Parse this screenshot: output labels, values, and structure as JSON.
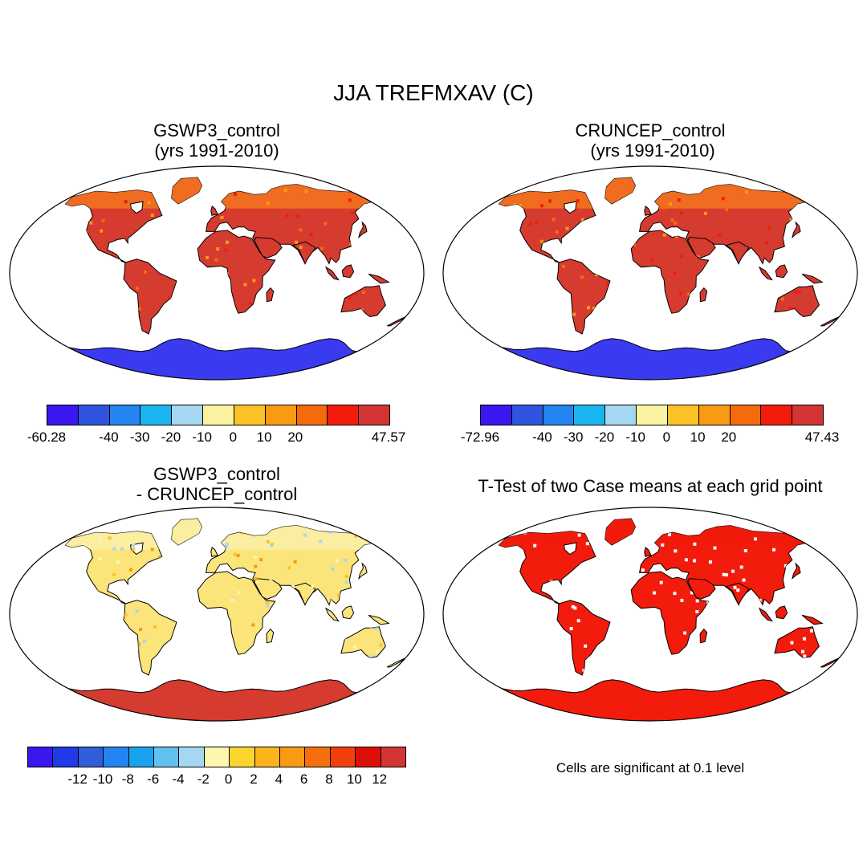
{
  "figure": {
    "title": "JJA TREFMXAV (C)"
  },
  "panels": {
    "tl": {
      "title1": "GSWP3_control",
      "title2": "(yrs 1991-2010)"
    },
    "tr": {
      "title1": "CRUNCEP_control",
      "title2": " (yrs 1991-2010)"
    },
    "bl": {
      "title1": "GSWP3_control",
      "title2": "- CRUNCEP_control"
    },
    "br": {
      "title1": "T-Test of two Case means at each grid point",
      "note": "Cells are significant at 0.1 level"
    }
  },
  "colorbars": {
    "tl": {
      "colors": [
        "#3a17f0",
        "#2f55e0",
        "#2384f2",
        "#19b5ee",
        "#a6d7f2",
        "#fbf3a0",
        "#fbc226",
        "#f89a12",
        "#f56a0c",
        "#f21b0c",
        "#d23533"
      ],
      "labels": [
        "-60.28",
        "-40",
        "-30",
        "-20",
        "-10",
        "0",
        "10",
        "20",
        "47.57"
      ]
    },
    "tr": {
      "colors": [
        "#3a17f0",
        "#2f55e0",
        "#2384f2",
        "#19b5ee",
        "#a6d7f2",
        "#fbf3a0",
        "#fbc226",
        "#f89a12",
        "#f56a0c",
        "#f21b0c",
        "#d23533"
      ],
      "labels": [
        "-72.96",
        "-40",
        "-30",
        "-20",
        "-10",
        "0",
        "10",
        "20",
        "47.43"
      ]
    },
    "bl": {
      "colors": [
        "#3a17f0",
        "#1f3ae6",
        "#2f5ed8",
        "#2384f2",
        "#19a3ee",
        "#60c1ee",
        "#a6d7f2",
        "#fdf6b0",
        "#fbd52e",
        "#fbb41c",
        "#f89a12",
        "#f5700c",
        "#f2400c",
        "#dc1008",
        "#d23533"
      ],
      "labels": [
        "-12",
        "-10",
        "-8",
        "-6",
        "-4",
        "-2",
        "0",
        "2",
        "4",
        "6",
        "8",
        "10",
        "12"
      ]
    }
  },
  "map_fills": {
    "tl": {
      "land": "#d63b30",
      "north": "#f5761e",
      "antarctica": "#3a3af0",
      "ocean": "#ffffff"
    },
    "tr": {
      "land": "#d63b30",
      "north": "#f5761e",
      "antarctica": "#3a3af0",
      "ocean": "#ffffff"
    },
    "bl": {
      "land": "#fbe57a",
      "north": "#fbf0a8",
      "antarctica": "#d63b30",
      "ocean": "#ffffff"
    },
    "br": {
      "land": "#f21b0c",
      "north": "#f21b0c",
      "antarctica": "#f21b0c",
      "ocean": "#ffffff"
    }
  }
}
